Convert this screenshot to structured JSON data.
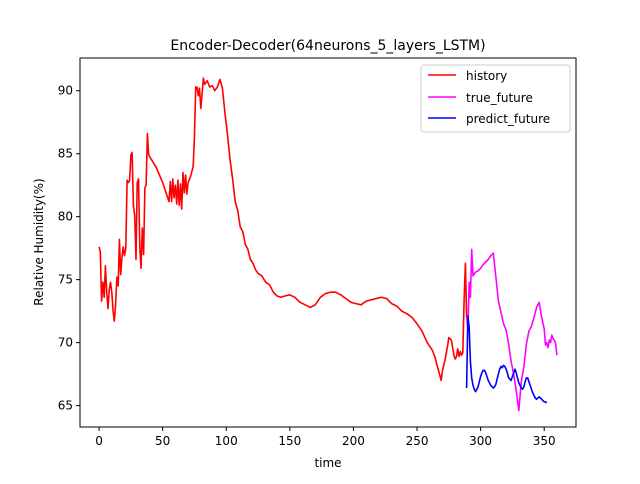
{
  "chart_data": {
    "type": "line",
    "title": "Encoder-Decoder(64neurons_5_layers_LSTM)",
    "xlabel": "time",
    "ylabel": "Relative Humidity(%)",
    "xlim": [
      -15,
      375
    ],
    "ylim": [
      63.3,
      92.6
    ],
    "xticks": [
      0,
      50,
      100,
      150,
      200,
      250,
      300,
      350
    ],
    "yticks": [
      65,
      70,
      75,
      80,
      85,
      90
    ],
    "grid": false,
    "legend_position": "top-right",
    "series": [
      {
        "name": "history",
        "color": "#ff0000",
        "points": [
          [
            0,
            77.6
          ],
          [
            1,
            77.2
          ],
          [
            2,
            73.3
          ],
          [
            3,
            74.8
          ],
          [
            4,
            73.6
          ],
          [
            5,
            76.1
          ],
          [
            6,
            74.0
          ],
          [
            7,
            72.7
          ],
          [
            8,
            74.2
          ],
          [
            9,
            74.8
          ],
          [
            10,
            74.0
          ],
          [
            11,
            72.5
          ],
          [
            12,
            71.7
          ],
          [
            13,
            73.0
          ],
          [
            14,
            75.2
          ],
          [
            15,
            74.5
          ],
          [
            16,
            78.2
          ],
          [
            17,
            75.4
          ],
          [
            18,
            76.8
          ],
          [
            19,
            77.6
          ],
          [
            20,
            76.9
          ],
          [
            21,
            77.5
          ],
          [
            22,
            82.9
          ],
          [
            23,
            82.7
          ],
          [
            24,
            82.9
          ],
          [
            25,
            84.9
          ],
          [
            26,
            85.1
          ],
          [
            27,
            80.9
          ],
          [
            28,
            80.1
          ],
          [
            29,
            76.6
          ],
          [
            30,
            82.7
          ],
          [
            31,
            83.0
          ],
          [
            32,
            77.6
          ],
          [
            33,
            75.9
          ],
          [
            34,
            79.1
          ],
          [
            35,
            77.0
          ],
          [
            36,
            82.3
          ],
          [
            37,
            82.5
          ],
          [
            38,
            86.6
          ],
          [
            39,
            84.9
          ],
          [
            45,
            83.9
          ],
          [
            50,
            82.7
          ],
          [
            55,
            81.2
          ],
          [
            56,
            82.8
          ],
          [
            57,
            81.2
          ],
          [
            58,
            83.0
          ],
          [
            59,
            81.5
          ],
          [
            60,
            82.5
          ],
          [
            61,
            81.0
          ],
          [
            62,
            82.9
          ],
          [
            63,
            80.9
          ],
          [
            64,
            82.6
          ],
          [
            65,
            80.6
          ],
          [
            66,
            83.5
          ],
          [
            67,
            81.9
          ],
          [
            68,
            83.3
          ],
          [
            69,
            81.8
          ],
          [
            70,
            82.7
          ],
          [
            72,
            83.2
          ],
          [
            74,
            84.0
          ],
          [
            75,
            86.5
          ],
          [
            76,
            90.3
          ],
          [
            77,
            90.3
          ],
          [
            78,
            89.6
          ],
          [
            79,
            90.2
          ],
          [
            80,
            88.6
          ],
          [
            81,
            89.8
          ],
          [
            82,
            91.0
          ],
          [
            83,
            90.5
          ],
          [
            85,
            90.8
          ],
          [
            87,
            90.3
          ],
          [
            89,
            90.4
          ],
          [
            91,
            90.0
          ],
          [
            93,
            90.3
          ],
          [
            95,
            90.9
          ],
          [
            97,
            90.2
          ],
          [
            99,
            88.2
          ],
          [
            101,
            86.5
          ],
          [
            103,
            84.5
          ],
          [
            105,
            83.0
          ],
          [
            107,
            81.2
          ],
          [
            109,
            80.5
          ],
          [
            111,
            79.2
          ],
          [
            113,
            78.8
          ],
          [
            115,
            77.8
          ],
          [
            117,
            77.4
          ],
          [
            119,
            76.6
          ],
          [
            121,
            76.3
          ],
          [
            123,
            75.8
          ],
          [
            125,
            75.5
          ],
          [
            128,
            75.3
          ],
          [
            131,
            74.8
          ],
          [
            134,
            74.6
          ],
          [
            137,
            74.0
          ],
          [
            140,
            73.7
          ],
          [
            143,
            73.6
          ],
          [
            146,
            73.7
          ],
          [
            150,
            73.8
          ],
          [
            154,
            73.6
          ],
          [
            158,
            73.2
          ],
          [
            162,
            73.0
          ],
          [
            166,
            72.8
          ],
          [
            170,
            73.0
          ],
          [
            174,
            73.6
          ],
          [
            178,
            73.9
          ],
          [
            182,
            74.0
          ],
          [
            186,
            74.0
          ],
          [
            190,
            73.8
          ],
          [
            194,
            73.5
          ],
          [
            198,
            73.2
          ],
          [
            202,
            73.1
          ],
          [
            206,
            73.0
          ],
          [
            210,
            73.3
          ],
          [
            214,
            73.4
          ],
          [
            218,
            73.5
          ],
          [
            222,
            73.6
          ],
          [
            226,
            73.5
          ],
          [
            230,
            73.1
          ],
          [
            234,
            72.9
          ],
          [
            238,
            72.5
          ],
          [
            242,
            72.3
          ],
          [
            246,
            72.0
          ],
          [
            250,
            71.5
          ],
          [
            254,
            70.9
          ],
          [
            258,
            70.0
          ],
          [
            262,
            69.4
          ],
          [
            264,
            68.9
          ],
          [
            266,
            68.1
          ],
          [
            268,
            67.4
          ],
          [
            269,
            67.0
          ],
          [
            270,
            67.8
          ],
          [
            272,
            68.6
          ],
          [
            274,
            69.7
          ],
          [
            275,
            70.4
          ],
          [
            277,
            70.2
          ],
          [
            279,
            69.0
          ],
          [
            280,
            68.7
          ],
          [
            281,
            68.9
          ],
          [
            282,
            69.5
          ],
          [
            283,
            68.9
          ],
          [
            284,
            69.3
          ],
          [
            285,
            69.0
          ],
          [
            286,
            69.2
          ],
          [
            287,
            73.4
          ],
          [
            288,
            76.3
          ],
          [
            289,
            72.0
          ]
        ]
      },
      {
        "name": "true_future",
        "color": "#ff00ff",
        "points": [
          [
            289,
            72.1
          ],
          [
            290,
            71.0
          ],
          [
            291,
            74.8
          ],
          [
            292,
            73.6
          ],
          [
            293,
            77.4
          ],
          [
            294,
            75.3
          ],
          [
            296,
            75.6
          ],
          [
            298,
            75.7
          ],
          [
            300,
            75.9
          ],
          [
            302,
            76.2
          ],
          [
            304,
            76.4
          ],
          [
            306,
            76.6
          ],
          [
            308,
            76.9
          ],
          [
            310,
            77.1
          ],
          [
            312,
            75.2
          ],
          [
            314,
            73.3
          ],
          [
            316,
            72.4
          ],
          [
            318,
            71.5
          ],
          [
            320,
            71.0
          ],
          [
            322,
            69.9
          ],
          [
            324,
            68.5
          ],
          [
            326,
            67.5
          ],
          [
            328,
            66.2
          ],
          [
            330,
            64.6
          ],
          [
            332,
            66.9
          ],
          [
            334,
            68.1
          ],
          [
            336,
            69.9
          ],
          [
            338,
            70.9
          ],
          [
            340,
            71.3
          ],
          [
            342,
            72.0
          ],
          [
            344,
            72.8
          ],
          [
            346,
            73.2
          ],
          [
            348,
            72.0
          ],
          [
            350,
            71.1
          ],
          [
            351,
            69.8
          ],
          [
            352,
            70.0
          ],
          [
            353,
            69.6
          ],
          [
            354,
            70.2
          ],
          [
            355,
            70.0
          ],
          [
            356,
            70.6
          ],
          [
            357,
            70.3
          ],
          [
            358,
            70.2
          ],
          [
            359,
            69.9
          ],
          [
            360,
            69.0
          ]
        ]
      },
      {
        "name": "predict_future",
        "color": "#0000ff",
        "points": [
          [
            289,
            66.4
          ],
          [
            290,
            72.1
          ],
          [
            291,
            71.2
          ],
          [
            292,
            68.5
          ],
          [
            293,
            67.2
          ],
          [
            294,
            66.6
          ],
          [
            295,
            66.3
          ],
          [
            296,
            66.1
          ],
          [
            297,
            66.3
          ],
          [
            298,
            66.5
          ],
          [
            299,
            66.9
          ],
          [
            300,
            67.3
          ],
          [
            301,
            67.6
          ],
          [
            302,
            67.8
          ],
          [
            303,
            67.8
          ],
          [
            304,
            67.6
          ],
          [
            305,
            67.3
          ],
          [
            306,
            67.0
          ],
          [
            307,
            66.8
          ],
          [
            308,
            66.6
          ],
          [
            309,
            66.5
          ],
          [
            310,
            66.4
          ],
          [
            311,
            66.5
          ],
          [
            312,
            66.7
          ],
          [
            313,
            67.1
          ],
          [
            314,
            67.5
          ],
          [
            315,
            67.9
          ],
          [
            316,
            68.1
          ],
          [
            317,
            68.0
          ],
          [
            318,
            68.2
          ],
          [
            319,
            68.1
          ],
          [
            320,
            67.9
          ],
          [
            321,
            67.6
          ],
          [
            322,
            67.2
          ],
          [
            323,
            67.1
          ],
          [
            324,
            67.0
          ],
          [
            325,
            67.3
          ],
          [
            326,
            67.6
          ],
          [
            327,
            67.9
          ],
          [
            328,
            67.6
          ],
          [
            329,
            67.2
          ],
          [
            330,
            66.8
          ],
          [
            331,
            66.6
          ],
          [
            332,
            66.4
          ],
          [
            333,
            66.3
          ],
          [
            334,
            66.5
          ],
          [
            335,
            66.9
          ],
          [
            336,
            67.2
          ],
          [
            337,
            67.2
          ],
          [
            338,
            66.9
          ],
          [
            339,
            66.6
          ],
          [
            340,
            66.3
          ],
          [
            341,
            66.0
          ],
          [
            342,
            65.8
          ],
          [
            343,
            65.6
          ],
          [
            344,
            65.5
          ],
          [
            345,
            65.6
          ],
          [
            346,
            65.7
          ],
          [
            347,
            65.6
          ],
          [
            348,
            65.5
          ],
          [
            349,
            65.4
          ],
          [
            350,
            65.3
          ],
          [
            351,
            65.3
          ],
          [
            352,
            65.2
          ]
        ]
      }
    ]
  }
}
